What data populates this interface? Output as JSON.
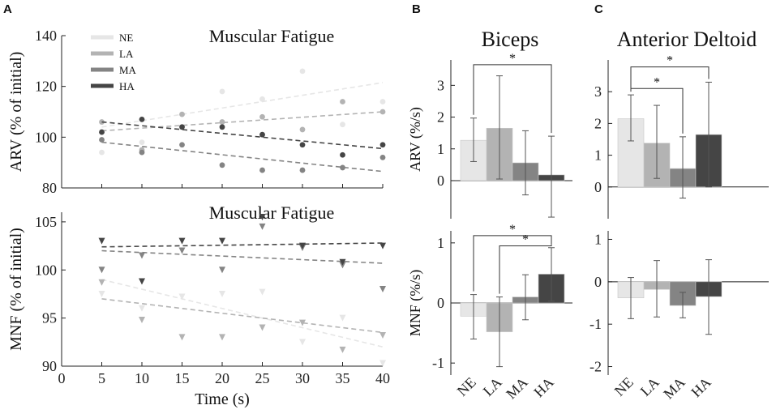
{
  "panel_labels": {
    "a": "A",
    "b": "B",
    "c": "C"
  },
  "colors": {
    "NE": "#e6e6e6",
    "LA": "#b3b3b3",
    "MA": "#848484",
    "HA": "#454545"
  },
  "chart_data": [
    {
      "id": "A1",
      "type": "scatter",
      "title": "Muscular Fatigue",
      "ylabel": "ARV (% of initial)",
      "xlabel": "",
      "xlim": [
        0,
        40
      ],
      "ylim": [
        80,
        140
      ],
      "yticks": [
        80,
        100,
        120,
        140
      ],
      "xticks": [],
      "marker": "circle",
      "legend": [
        "NE",
        "LA",
        "MA",
        "HA"
      ],
      "series": [
        {
          "name": "NE",
          "x": [
            5,
            10,
            15,
            20,
            25,
            30,
            35,
            40
          ],
          "y": [
            94,
            98,
            104,
            118,
            115,
            126,
            105,
            114
          ],
          "fit": [
            104.0,
            121.5
          ]
        },
        {
          "name": "LA",
          "x": [
            5,
            10,
            15,
            20,
            25,
            30,
            35,
            40
          ],
          "y": [
            106,
            95,
            109,
            106,
            108,
            103,
            114,
            110
          ],
          "fit": [
            102.5,
            110.0
          ]
        },
        {
          "name": "MA",
          "x": [
            5,
            10,
            15,
            20,
            25,
            30,
            35,
            40
          ],
          "y": [
            99,
            94,
            97,
            89,
            87,
            87,
            88,
            92
          ],
          "fit": [
            98.0,
            86.5
          ]
        },
        {
          "name": "HA",
          "x": [
            5,
            10,
            15,
            20,
            25,
            30,
            35,
            40
          ],
          "y": [
            102,
            107,
            104,
            104,
            101,
            97,
            93,
            97
          ],
          "fit": [
            106.0,
            95.5
          ]
        }
      ]
    },
    {
      "id": "A2",
      "type": "scatter",
      "title": "Muscular Fatigue",
      "ylabel": "MNF (% of initial)",
      "xlabel": "Time (s)",
      "xlim": [
        0,
        40
      ],
      "ylim": [
        90,
        106
      ],
      "yticks": [
        90,
        95,
        100,
        105
      ],
      "xticks": [
        0,
        5,
        10,
        15,
        20,
        25,
        30,
        35,
        40
      ],
      "marker": "triangle-down",
      "series": [
        {
          "name": "NE",
          "x": [
            5,
            10,
            15,
            20,
            25,
            30,
            35,
            40
          ],
          "y": [
            97.5,
            96,
            97.2,
            97.5,
            97.7,
            92.5,
            95,
            90.3
          ],
          "fit": [
            99.0,
            92.0
          ]
        },
        {
          "name": "LA",
          "x": [
            5,
            10,
            15,
            20,
            25,
            30,
            35,
            40
          ],
          "y": [
            98.7,
            94.8,
            93,
            93,
            94,
            94.5,
            91.7,
            93.2
          ],
          "fit": [
            97.0,
            93.5
          ]
        },
        {
          "name": "MA",
          "x": [
            5,
            10,
            15,
            20,
            25,
            30,
            35,
            40
          ],
          "y": [
            100,
            101.5,
            102,
            100,
            104.5,
            102.3,
            100.5,
            98
          ],
          "fit": [
            102.0,
            100.7
          ]
        },
        {
          "name": "HA",
          "x": [
            5,
            10,
            15,
            20,
            25,
            30,
            35,
            40
          ],
          "y": [
            103,
            98.8,
            103,
            103,
            105.5,
            102.5,
            100.8,
            102.5
          ],
          "fit": [
            102.4,
            102.8
          ]
        }
      ]
    },
    {
      "id": "B1",
      "type": "bar",
      "title": "Biceps",
      "ylabel": "ARV (%/s)",
      "categories": [
        "NE",
        "LA",
        "MA",
        "HA"
      ],
      "values": [
        1.27,
        1.65,
        0.56,
        0.18
      ],
      "err_low": [
        0.6,
        0.05,
        -0.45,
        -1.15
      ],
      "err_high": [
        1.97,
        3.3,
        1.57,
        1.4
      ],
      "ylim": [
        -1.2,
        3.8
      ],
      "yticks": [
        0,
        1,
        2,
        3
      ],
      "significance": [
        {
          "from": "NE",
          "to": "HA",
          "label": "*",
          "level": 3.65
        }
      ]
    },
    {
      "id": "B2",
      "type": "bar",
      "title": "",
      "ylabel": "MNF (%/s)",
      "categories": [
        "NE",
        "LA",
        "MA",
        "HA"
      ],
      "values": [
        -0.22,
        -0.48,
        0.1,
        0.48
      ],
      "err_low": [
        -0.6,
        -1.06,
        -0.28,
        0.03
      ],
      "err_high": [
        0.14,
        0.1,
        0.47,
        0.92
      ],
      "ylim": [
        -1.2,
        1.2
      ],
      "yticks": [
        -1,
        0,
        1
      ],
      "xticklabels": [
        "NE",
        "LA",
        "MA",
        "HA"
      ],
      "significance": [
        {
          "from": "NE",
          "to": "HA",
          "label": "*",
          "level": 1.12
        },
        {
          "from": "LA",
          "to": "HA",
          "label": "*",
          "level": 0.95
        }
      ]
    },
    {
      "id": "C1",
      "type": "bar",
      "title": "Anterior Deltoid",
      "ylabel": "",
      "categories": [
        "NE",
        "LA",
        "MA",
        "HA"
      ],
      "values": [
        2.15,
        1.38,
        0.58,
        1.65
      ],
      "err_low": [
        1.45,
        0.27,
        -0.35,
        0.0
      ],
      "err_high": [
        2.9,
        2.57,
        1.58,
        3.3
      ],
      "ylim": [
        -1.0,
        4.0
      ],
      "yticks": [
        0,
        1,
        2,
        3
      ],
      "significance": [
        {
          "from": "NE",
          "to": "HA",
          "label": "*",
          "level": 3.78
        },
        {
          "from": "NE",
          "to": "MA",
          "label": "*",
          "level": 3.1
        }
      ]
    },
    {
      "id": "C2",
      "type": "bar",
      "title": "",
      "ylabel": "",
      "categories": [
        "NE",
        "LA",
        "MA",
        "HA"
      ],
      "values": [
        -0.38,
        -0.18,
        -0.56,
        -0.35
      ],
      "err_low": [
        -0.87,
        -0.83,
        -0.85,
        -1.24
      ],
      "err_high": [
        0.1,
        0.5,
        -0.25,
        0.52
      ],
      "ylim": [
        -2.2,
        1.2
      ],
      "yticks": [
        -2,
        -1,
        0,
        1
      ],
      "xticklabels": [
        "NE",
        "LA",
        "MA",
        "HA"
      ],
      "significance": []
    }
  ]
}
